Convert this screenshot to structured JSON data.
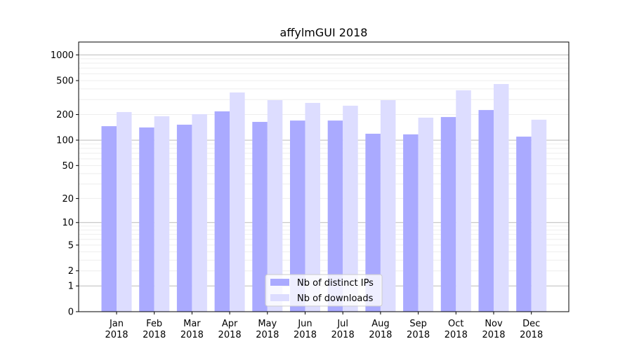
{
  "chart_data": {
    "type": "bar",
    "title": "affylmGUI 2018",
    "xlabel": "",
    "ylabel": "",
    "yscale": "symlog (log10(1+y))",
    "ylim": [
      0,
      1400
    ],
    "yticks": [
      0,
      1,
      2,
      5,
      10,
      20,
      50,
      100,
      200,
      500,
      1000
    ],
    "grid": true,
    "legend_position": "bottom-center",
    "categories": [
      "Jan\n2018",
      "Feb\n2018",
      "Mar\n2018",
      "Apr\n2018",
      "May\n2018",
      "Jun\n2018",
      "Jul\n2018",
      "Aug\n2018",
      "Sep\n2018",
      "Oct\n2018",
      "Nov\n2018",
      "Dec\n2018"
    ],
    "series": [
      {
        "name": "Nb of distinct IPs",
        "color": "#aaaaff",
        "values": [
          146,
          141,
          152,
          218,
          164,
          170,
          170,
          119,
          117,
          187,
          226,
          110
        ]
      },
      {
        "name": "Nb of downloads",
        "color": "#ddddff",
        "values": [
          214,
          191,
          202,
          363,
          295,
          274,
          254,
          295,
          184,
          385,
          456,
          174
        ]
      }
    ]
  }
}
